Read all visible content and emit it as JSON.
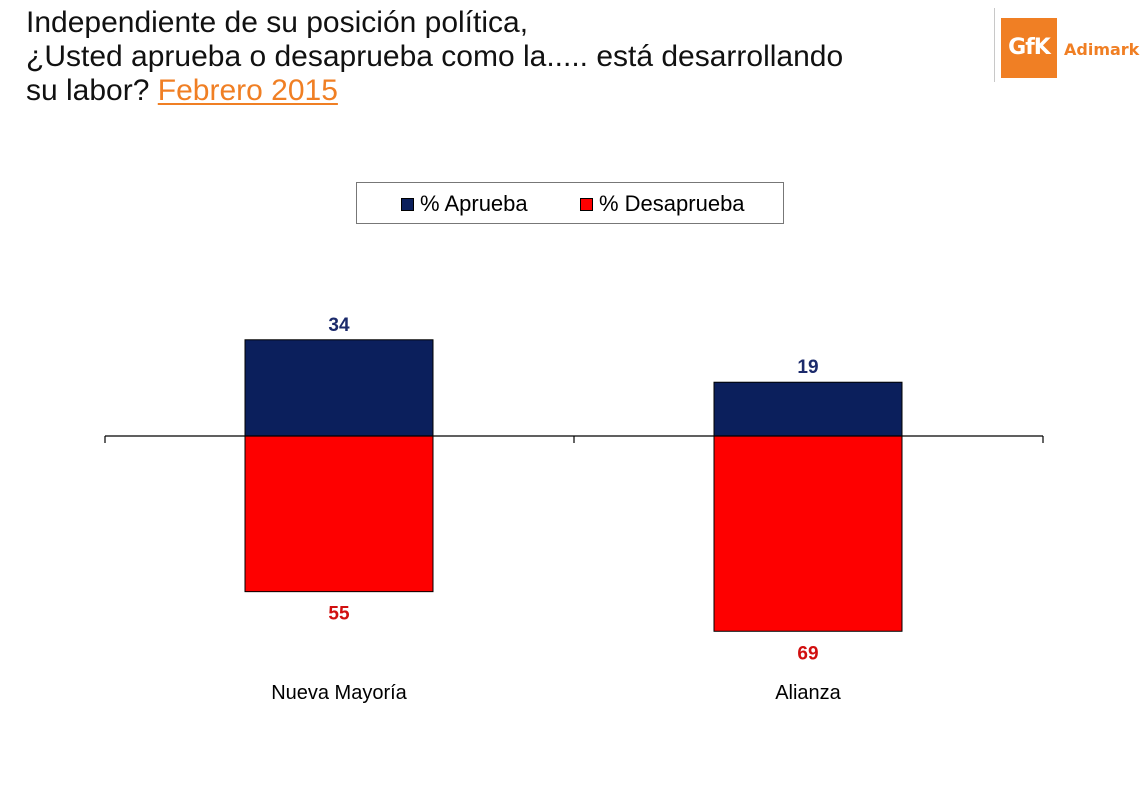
{
  "header": {
    "line1": "Independiente de su posición política,",
    "line2": "¿Usted aprueba o desaprueba como la..... está desarrollando",
    "line3_prefix": "su labor?",
    "line3_date": "Febrero 2015"
  },
  "logo": {
    "mark_text": "GfK",
    "brand_text": "Adimark"
  },
  "colors": {
    "aprueba": "#0b1f5c",
    "desaprueba": "#fe0000",
    "aprueba_label": "#1b2a6b",
    "desaprueba_label": "#d10f0f",
    "date_accent": "#f07f24"
  },
  "chart_data": {
    "type": "bar",
    "stacking": "diverging",
    "categories": [
      "Nueva Mayoría",
      "Alianza"
    ],
    "series": [
      {
        "name": "% Aprueba",
        "values": [
          34,
          19
        ],
        "direction": "up"
      },
      {
        "name": "% Desaprueba",
        "values": [
          55,
          69
        ],
        "direction": "down"
      }
    ],
    "legend_position": "top-center",
    "grid": false
  }
}
